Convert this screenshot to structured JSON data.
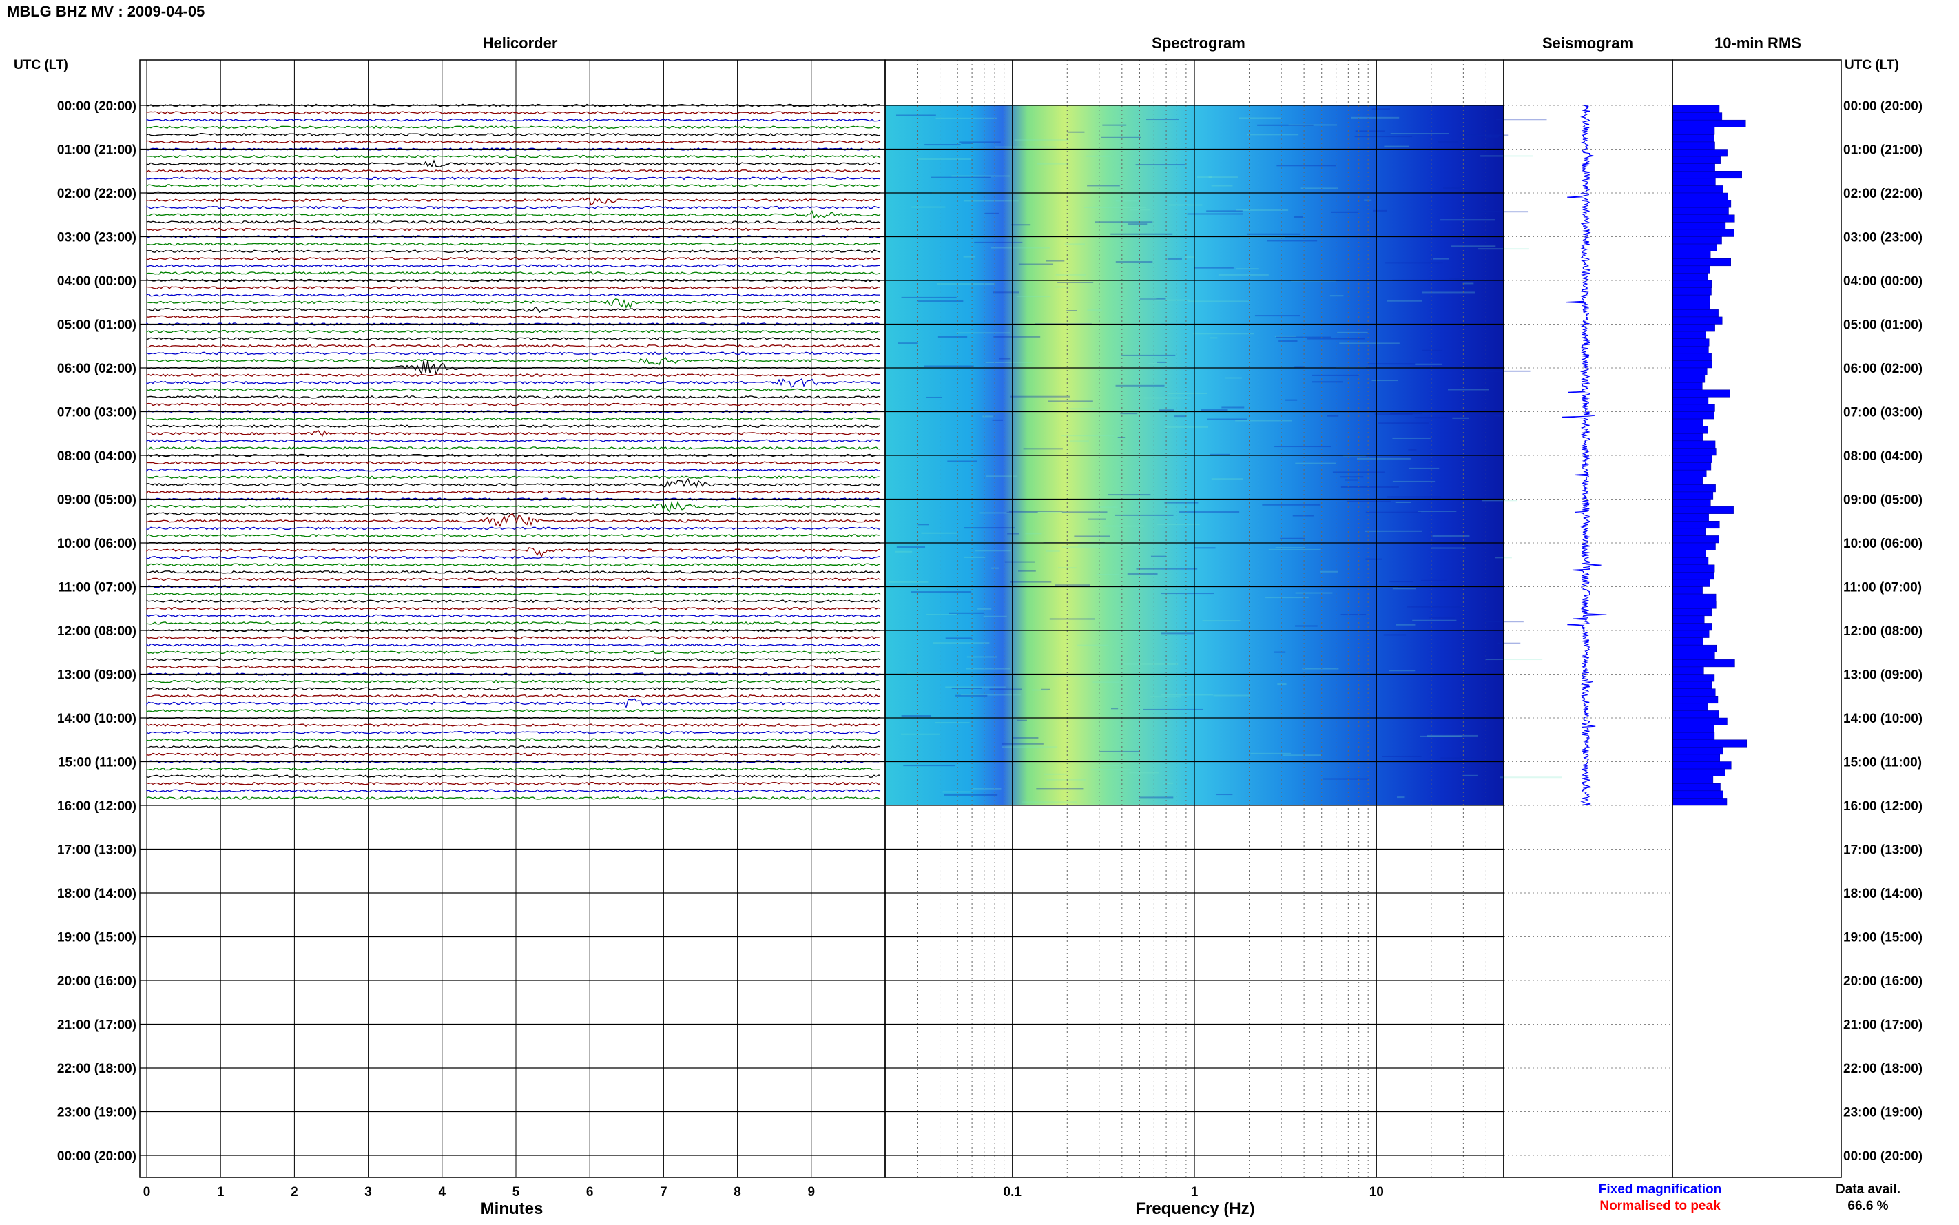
{
  "header": {
    "title": "MBLG BHZ MV : 2009-04-05"
  },
  "panels": {
    "helicorder": "Helicorder",
    "spectrogram": "Spectrogram",
    "seismogram": "Seismogram",
    "rms": "10-min RMS"
  },
  "axes": {
    "left_title": "UTC (LT)",
    "right_title": "UTC (LT)",
    "xlabel_minutes": "Minutes",
    "xlabel_frequency": "Frequency (Hz)"
  },
  "legend": {
    "fixed": "Fixed magnification",
    "normalised": "Normalised to peak",
    "fixed_color": "#0000ff",
    "normalised_color": "#ff0000"
  },
  "data_avail": {
    "label": "Data avail.",
    "value": "66.6 %"
  },
  "chart_data": {
    "type": "helicorder",
    "time_labels": [
      "00:00 (20:00)",
      "01:00 (21:00)",
      "02:00 (22:00)",
      "03:00 (23:00)",
      "04:00 (00:00)",
      "05:00 (01:00)",
      "06:00 (02:00)",
      "07:00 (03:00)",
      "08:00 (04:00)",
      "09:00 (05:00)",
      "10:00 (06:00)",
      "11:00 (07:00)",
      "12:00 (08:00)",
      "13:00 (09:00)",
      "14:00 (10:00)",
      "15:00 (11:00)",
      "16:00 (12:00)",
      "17:00 (13:00)",
      "18:00 (14:00)",
      "19:00 (15:00)",
      "20:00 (16:00)",
      "21:00 (17:00)",
      "22:00 (18:00)",
      "23:00 (19:00)",
      "00:00 (20:00)"
    ],
    "minutes_ticks": [
      "0",
      "1",
      "2",
      "3",
      "4",
      "5",
      "6",
      "7",
      "8",
      "9"
    ],
    "frequency_ticks": [
      "0.1",
      "1",
      "10"
    ],
    "frequency_range_hz": [
      0.02,
      50
    ],
    "data_hours": 16,
    "trace_colors": [
      "#000000",
      "#8b0000",
      "#0000cd",
      "#008000"
    ],
    "rms_hourly": [
      0.3,
      0.3,
      0.35,
      0.25,
      0.25,
      0.22,
      0.22,
      0.22,
      0.22,
      0.24,
      0.22,
      0.22,
      0.22,
      0.24,
      0.3,
      0.3
    ]
  }
}
